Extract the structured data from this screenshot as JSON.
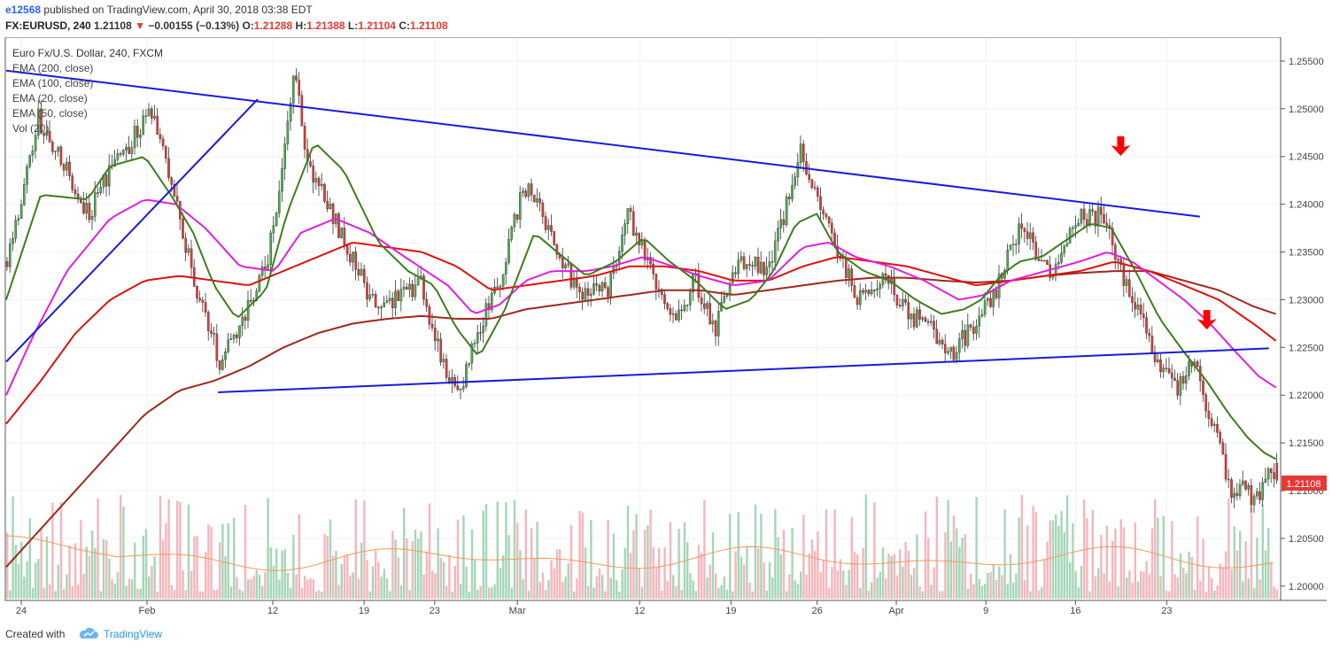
{
  "header": {
    "username": "e12568",
    "published_text": "published on TradingView.com, April 30, 2018 03:38 EDT",
    "symbol": "FX:EURUSD, 240",
    "last": "1.21108",
    "change": "−0.00155 (−0.13%)",
    "o_label": "O:",
    "o_value": "1.21288",
    "h_label": "H:",
    "h_value": "1.21388",
    "l_label": "L:",
    "l_value": "1.21104",
    "c_label": "C:",
    "c_value": "1.21108",
    "down_arrow": "▼"
  },
  "legend": {
    "title": "Euro Fx/U.S. Dollar, 240, FXCM",
    "items": [
      "EMA (200, close)",
      "EMA (100, close)",
      "EMA (20, close)",
      "EMA (50, close)",
      "Vol (20)"
    ]
  },
  "footer": {
    "created": "Created with",
    "brand": "TradingView"
  },
  "colors": {
    "up": "#4caf50",
    "down": "#e53935",
    "up_vol": "#a5d6b7",
    "down_vol": "#f4b6bc",
    "ema20": "#3e7d1e",
    "ema50": "#e01ee0",
    "ema100": "#e01010",
    "ema200": "#a0281e",
    "trendline": "#1a1adb",
    "arrow": "#ff0000",
    "last_price_bg": "#e53935"
  },
  "chart_data": {
    "type": "candlestick",
    "instrument": "FX:EURUSD",
    "timeframe": "240",
    "ylim": [
      1.1985,
      1.2575
    ],
    "y_ticks": [
      "1.20000",
      "1.20500",
      "1.21000",
      "1.21500",
      "1.22000",
      "1.22500",
      "1.23000",
      "1.23500",
      "1.24000",
      "1.24500",
      "1.25000",
      "1.25500"
    ],
    "x_ticks": [
      "24",
      "Feb",
      "12",
      "19",
      "23",
      "Mar",
      "12",
      "19",
      "26",
      "Apr",
      "9",
      "16",
      "23"
    ],
    "last_price_label": "1.21108",
    "close_path": [
      {
        "d": 0,
        "v": 1.234
      },
      {
        "d": 1.8,
        "v": 1.249
      },
      {
        "d": 4.7,
        "v": 1.239
      },
      {
        "d": 6.0,
        "v": 1.244
      },
      {
        "d": 8.4,
        "v": 1.2495
      },
      {
        "d": 9.9,
        "v": 1.239
      },
      {
        "d": 11.2,
        "v": 1.2295
      },
      {
        "d": 12.3,
        "v": 1.2235
      },
      {
        "d": 13.4,
        "v": 1.2275
      },
      {
        "d": 15.0,
        "v": 1.2335
      },
      {
        "d": 16.1,
        "v": 1.247
      },
      {
        "d": 16.6,
        "v": 1.2545
      },
      {
        "d": 17.3,
        "v": 1.244
      },
      {
        "d": 18.8,
        "v": 1.239
      },
      {
        "d": 20.0,
        "v": 1.234
      },
      {
        "d": 21.5,
        "v": 1.2285
      },
      {
        "d": 23.8,
        "v": 1.232
      },
      {
        "d": 24.7,
        "v": 1.226
      },
      {
        "d": 26.0,
        "v": 1.2195
      },
      {
        "d": 27.0,
        "v": 1.226
      },
      {
        "d": 28.4,
        "v": 1.232
      },
      {
        "d": 29.8,
        "v": 1.242
      },
      {
        "d": 31.2,
        "v": 1.238
      },
      {
        "d": 32.8,
        "v": 1.231
      },
      {
        "d": 34.7,
        "v": 1.231
      },
      {
        "d": 35.8,
        "v": 1.2395
      },
      {
        "d": 37.2,
        "v": 1.233
      },
      {
        "d": 38.6,
        "v": 1.227
      },
      {
        "d": 39.7,
        "v": 1.2325
      },
      {
        "d": 40.8,
        "v": 1.2265
      },
      {
        "d": 42.3,
        "v": 1.234
      },
      {
        "d": 44.0,
        "v": 1.233
      },
      {
        "d": 45.4,
        "v": 1.243
      },
      {
        "d": 45.8,
        "v": 1.2455
      },
      {
        "d": 46.8,
        "v": 1.24
      },
      {
        "d": 48.0,
        "v": 1.2345
      },
      {
        "d": 49.2,
        "v": 1.23
      },
      {
        "d": 50.8,
        "v": 1.232
      },
      {
        "d": 52.0,
        "v": 1.2285
      },
      {
        "d": 53.4,
        "v": 1.227
      },
      {
        "d": 54.5,
        "v": 1.2245
      },
      {
        "d": 56.0,
        "v": 1.2275
      },
      {
        "d": 57.1,
        "v": 1.231
      },
      {
        "d": 58.5,
        "v": 1.238
      },
      {
        "d": 59.5,
        "v": 1.235
      },
      {
        "d": 60.5,
        "v": 1.2325
      },
      {
        "d": 61.8,
        "v": 1.239
      },
      {
        "d": 63.5,
        "v": 1.2385
      },
      {
        "d": 64.0,
        "v": 1.2345
      },
      {
        "d": 65.0,
        "v": 1.23
      },
      {
        "d": 65.7,
        "v": 1.227
      },
      {
        "d": 66.4,
        "v": 1.224
      },
      {
        "d": 67.5,
        "v": 1.2205
      },
      {
        "d": 68.5,
        "v": 1.224
      },
      {
        "d": 69.2,
        "v": 1.219
      },
      {
        "d": 70.0,
        "v": 1.2145
      },
      {
        "d": 70.8,
        "v": 1.209
      },
      {
        "d": 71.5,
        "v": 1.2105
      },
      {
        "d": 72.0,
        "v": 1.2085
      },
      {
        "d": 72.8,
        "v": 1.212
      },
      {
        "d": 73.3,
        "v": 1.2111
      }
    ],
    "ema20_path": [
      {
        "d": 0,
        "v": 1.23
      },
      {
        "d": 2.0,
        "v": 1.241
      },
      {
        "d": 4.7,
        "v": 1.2405
      },
      {
        "d": 6.0,
        "v": 1.244
      },
      {
        "d": 8.0,
        "v": 1.245
      },
      {
        "d": 9.5,
        "v": 1.241
      },
      {
        "d": 10.8,
        "v": 1.237
      },
      {
        "d": 12.0,
        "v": 1.2315
      },
      {
        "d": 13.3,
        "v": 1.228
      },
      {
        "d": 15.0,
        "v": 1.231
      },
      {
        "d": 16.2,
        "v": 1.239
      },
      {
        "d": 17.8,
        "v": 1.2465
      },
      {
        "d": 19.5,
        "v": 1.2435
      },
      {
        "d": 21.5,
        "v": 1.236
      },
      {
        "d": 23.2,
        "v": 1.233
      },
      {
        "d": 24.7,
        "v": 1.2315
      },
      {
        "d": 26.0,
        "v": 1.227
      },
      {
        "d": 27.3,
        "v": 1.224
      },
      {
        "d": 28.8,
        "v": 1.229
      },
      {
        "d": 30.5,
        "v": 1.237
      },
      {
        "d": 31.8,
        "v": 1.235
      },
      {
        "d": 33.5,
        "v": 1.2325
      },
      {
        "d": 35.2,
        "v": 1.234
      },
      {
        "d": 36.8,
        "v": 1.2365
      },
      {
        "d": 38.3,
        "v": 1.234
      },
      {
        "d": 39.8,
        "v": 1.232
      },
      {
        "d": 41.5,
        "v": 1.229
      },
      {
        "d": 43.0,
        "v": 1.23
      },
      {
        "d": 44.3,
        "v": 1.233
      },
      {
        "d": 45.6,
        "v": 1.238
      },
      {
        "d": 46.8,
        "v": 1.239
      },
      {
        "d": 48.0,
        "v": 1.235
      },
      {
        "d": 49.5,
        "v": 1.233
      },
      {
        "d": 51.0,
        "v": 1.232
      },
      {
        "d": 52.5,
        "v": 1.23
      },
      {
        "d": 54.0,
        "v": 1.2285
      },
      {
        "d": 55.3,
        "v": 1.229
      },
      {
        "d": 56.3,
        "v": 1.23
      },
      {
        "d": 57.4,
        "v": 1.2325
      },
      {
        "d": 58.5,
        "v": 1.234
      },
      {
        "d": 59.8,
        "v": 1.2345
      },
      {
        "d": 61.0,
        "v": 1.236
      },
      {
        "d": 62.6,
        "v": 1.238
      },
      {
        "d": 63.8,
        "v": 1.2375
      },
      {
        "d": 65.2,
        "v": 1.233
      },
      {
        "d": 66.6,
        "v": 1.228
      },
      {
        "d": 68.0,
        "v": 1.2245
      },
      {
        "d": 69.3,
        "v": 1.2215
      },
      {
        "d": 70.6,
        "v": 1.218
      },
      {
        "d": 71.7,
        "v": 1.2155
      },
      {
        "d": 72.6,
        "v": 1.214
      },
      {
        "d": 73.3,
        "v": 1.2133
      }
    ],
    "ema50_path": [
      {
        "d": 0,
        "v": 1.22
      },
      {
        "d": 1.5,
        "v": 1.226
      },
      {
        "d": 3.5,
        "v": 1.233
      },
      {
        "d": 6.0,
        "v": 1.2385
      },
      {
        "d": 8.0,
        "v": 1.2405
      },
      {
        "d": 9.8,
        "v": 1.24
      },
      {
        "d": 11.5,
        "v": 1.2375
      },
      {
        "d": 13.5,
        "v": 1.2335
      },
      {
        "d": 15.5,
        "v": 1.233
      },
      {
        "d": 17.0,
        "v": 1.237
      },
      {
        "d": 19.0,
        "v": 1.2385
      },
      {
        "d": 21.0,
        "v": 1.237
      },
      {
        "d": 23.0,
        "v": 1.2345
      },
      {
        "d": 25.5,
        "v": 1.2315
      },
      {
        "d": 27.0,
        "v": 1.2285
      },
      {
        "d": 28.5,
        "v": 1.2295
      },
      {
        "d": 30.0,
        "v": 1.232
      },
      {
        "d": 31.5,
        "v": 1.233
      },
      {
        "d": 33.5,
        "v": 1.233
      },
      {
        "d": 35.0,
        "v": 1.2335
      },
      {
        "d": 36.8,
        "v": 1.2345
      },
      {
        "d": 38.5,
        "v": 1.2335
      },
      {
        "d": 40.0,
        "v": 1.2325
      },
      {
        "d": 42.0,
        "v": 1.2315
      },
      {
        "d": 44.0,
        "v": 1.232
      },
      {
        "d": 46.0,
        "v": 1.2355
      },
      {
        "d": 47.5,
        "v": 1.236
      },
      {
        "d": 49.0,
        "v": 1.2345
      },
      {
        "d": 51.0,
        "v": 1.2335
      },
      {
        "d": 53.0,
        "v": 1.232
      },
      {
        "d": 55.0,
        "v": 1.23
      },
      {
        "d": 56.5,
        "v": 1.2305
      },
      {
        "d": 58.0,
        "v": 1.232
      },
      {
        "d": 60.0,
        "v": 1.233
      },
      {
        "d": 62.0,
        "v": 1.234
      },
      {
        "d": 63.6,
        "v": 1.235
      },
      {
        "d": 65.0,
        "v": 1.234
      },
      {
        "d": 66.5,
        "v": 1.232
      },
      {
        "d": 68.0,
        "v": 1.23
      },
      {
        "d": 69.5,
        "v": 1.2275
      },
      {
        "d": 71.0,
        "v": 1.2245
      },
      {
        "d": 72.3,
        "v": 1.222
      },
      {
        "d": 73.3,
        "v": 1.2208
      }
    ],
    "ema100_path": [
      {
        "d": 0,
        "v": 1.217
      },
      {
        "d": 2.0,
        "v": 1.2215
      },
      {
        "d": 4.0,
        "v": 1.2265
      },
      {
        "d": 6.0,
        "v": 1.23
      },
      {
        "d": 8.0,
        "v": 1.232
      },
      {
        "d": 10.0,
        "v": 1.2325
      },
      {
        "d": 12.0,
        "v": 1.232
      },
      {
        "d": 14.0,
        "v": 1.2315
      },
      {
        "d": 16.0,
        "v": 1.233
      },
      {
        "d": 18.0,
        "v": 1.2345
      },
      {
        "d": 20.0,
        "v": 1.236
      },
      {
        "d": 22.0,
        "v": 1.2355
      },
      {
        "d": 24.0,
        "v": 1.235
      },
      {
        "d": 26.0,
        "v": 1.2335
      },
      {
        "d": 28.0,
        "v": 1.231
      },
      {
        "d": 30.0,
        "v": 1.2315
      },
      {
        "d": 32.0,
        "v": 1.232
      },
      {
        "d": 34.0,
        "v": 1.2325
      },
      {
        "d": 36.0,
        "v": 1.2335
      },
      {
        "d": 38.0,
        "v": 1.2335
      },
      {
        "d": 40.0,
        "v": 1.233
      },
      {
        "d": 42.0,
        "v": 1.232
      },
      {
        "d": 44.0,
        "v": 1.232
      },
      {
        "d": 46.0,
        "v": 1.2335
      },
      {
        "d": 48.0,
        "v": 1.2345
      },
      {
        "d": 50.0,
        "v": 1.234
      },
      {
        "d": 52.0,
        "v": 1.2335
      },
      {
        "d": 54.0,
        "v": 1.2325
      },
      {
        "d": 56.0,
        "v": 1.2315
      },
      {
        "d": 58.0,
        "v": 1.232
      },
      {
        "d": 60.0,
        "v": 1.2325
      },
      {
        "d": 62.0,
        "v": 1.233
      },
      {
        "d": 64.0,
        "v": 1.234
      },
      {
        "d": 66.0,
        "v": 1.233
      },
      {
        "d": 68.0,
        "v": 1.2315
      },
      {
        "d": 70.0,
        "v": 1.23
      },
      {
        "d": 72.0,
        "v": 1.2275
      },
      {
        "d": 73.3,
        "v": 1.2257
      }
    ],
    "ema200_path": [
      {
        "d": 0,
        "v": 1.202
      },
      {
        "d": 2.0,
        "v": 1.206
      },
      {
        "d": 4.0,
        "v": 1.21
      },
      {
        "d": 6.0,
        "v": 1.214
      },
      {
        "d": 8.0,
        "v": 1.218
      },
      {
        "d": 10.0,
        "v": 1.2205
      },
      {
        "d": 12.0,
        "v": 1.2215
      },
      {
        "d": 14.0,
        "v": 1.223
      },
      {
        "d": 16.0,
        "v": 1.225
      },
      {
        "d": 18.0,
        "v": 1.2265
      },
      {
        "d": 20.0,
        "v": 1.2275
      },
      {
        "d": 22.0,
        "v": 1.228
      },
      {
        "d": 24.0,
        "v": 1.2283
      },
      {
        "d": 26.0,
        "v": 1.228
      },
      {
        "d": 28.0,
        "v": 1.228
      },
      {
        "d": 30.0,
        "v": 1.229
      },
      {
        "d": 32.0,
        "v": 1.2295
      },
      {
        "d": 34.0,
        "v": 1.23
      },
      {
        "d": 36.0,
        "v": 1.2305
      },
      {
        "d": 38.0,
        "v": 1.231
      },
      {
        "d": 40.0,
        "v": 1.231
      },
      {
        "d": 42.0,
        "v": 1.2305
      },
      {
        "d": 44.0,
        "v": 1.231
      },
      {
        "d": 46.0,
        "v": 1.2315
      },
      {
        "d": 48.0,
        "v": 1.232
      },
      {
        "d": 50.0,
        "v": 1.2323
      },
      {
        "d": 52.0,
        "v": 1.2323
      },
      {
        "d": 54.0,
        "v": 1.232
      },
      {
        "d": 56.0,
        "v": 1.2318
      },
      {
        "d": 58.0,
        "v": 1.232
      },
      {
        "d": 60.0,
        "v": 1.2325
      },
      {
        "d": 62.0,
        "v": 1.2328
      },
      {
        "d": 64.0,
        "v": 1.233
      },
      {
        "d": 66.0,
        "v": 1.233
      },
      {
        "d": 68.0,
        "v": 1.232
      },
      {
        "d": 70.0,
        "v": 1.231
      },
      {
        "d": 72.0,
        "v": 1.2293
      },
      {
        "d": 73.3,
        "v": 1.2285
      }
    ],
    "trendlines": [
      {
        "name": "upper",
        "from": {
          "d": 0,
          "v": 1.254
        },
        "to": {
          "d": 69.3,
          "v": 1.2387
        }
      },
      {
        "name": "lower",
        "from": {
          "d": 12.3,
          "v": 1.2203
        },
        "to": {
          "d": 73.3,
          "v": 1.2249
        }
      },
      {
        "name": "rising",
        "from": {
          "d": 0,
          "v": 1.2235
        },
        "to": {
          "d": 14.6,
          "v": 1.251
        }
      }
    ],
    "arrows": [
      {
        "d": 64.7,
        "v": 1.246
      },
      {
        "d": 69.7,
        "v": 1.2278
      }
    ]
  }
}
